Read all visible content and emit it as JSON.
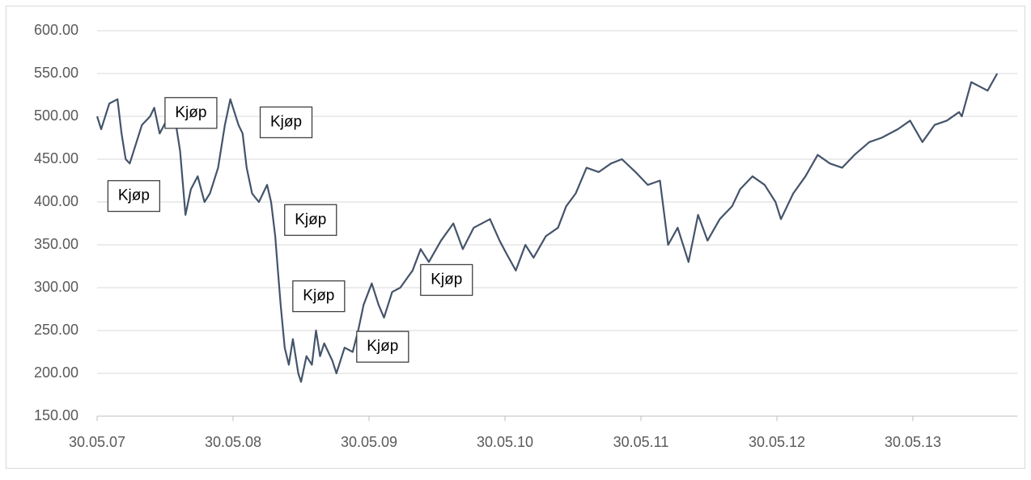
{
  "chart_data": {
    "type": "line",
    "x": [
      0,
      0.03,
      0.09,
      0.15,
      0.18,
      0.21,
      0.24,
      0.29,
      0.33,
      0.39,
      0.42,
      0.46,
      0.51,
      0.57,
      0.61,
      0.65,
      0.69,
      0.74,
      0.79,
      0.83,
      0.89,
      0.94,
      0.98,
      1.04,
      1.07,
      1.1,
      1.14,
      1.19,
      1.25,
      1.28,
      1.31,
      1.33,
      1.35,
      1.38,
      1.41,
      1.44,
      1.48,
      1.5,
      1.54,
      1.58,
      1.61,
      1.64,
      1.67,
      1.73,
      1.76,
      1.82,
      1.88,
      1.92,
      1.96,
      2.02,
      2.07,
      2.11,
      2.17,
      2.23,
      2.32,
      2.38,
      2.44,
      2.53,
      2.62,
      2.69,
      2.77,
      2.89,
      2.96,
      3.01,
      3.08,
      3.15,
      3.21,
      3.3,
      3.39,
      3.45,
      3.52,
      3.6,
      3.69,
      3.78,
      3.86,
      3.96,
      4.05,
      4.14,
      4.2,
      4.27,
      4.35,
      4.42,
      4.49,
      4.58,
      4.67,
      4.73,
      4.82,
      4.91,
      4.99,
      5.03,
      5.12,
      5.21,
      5.3,
      5.39,
      5.48,
      5.57,
      5.68,
      5.77,
      5.89,
      5.98,
      6.07,
      6.16,
      6.25,
      6.34,
      6.36,
      6.43,
      6.55,
      6.62
    ],
    "values": [
      500,
      485,
      515,
      520,
      480,
      450,
      445,
      470,
      490,
      500,
      510,
      480,
      495,
      500,
      460,
      385,
      415,
      430,
      400,
      410,
      440,
      490,
      520,
      490,
      480,
      440,
      410,
      400,
      420,
      400,
      360,
      320,
      280,
      230,
      210,
      240,
      200,
      190,
      220,
      210,
      250,
      220,
      235,
      215,
      200,
      230,
      225,
      250,
      280,
      305,
      280,
      265,
      295,
      300,
      320,
      345,
      330,
      355,
      375,
      345,
      370,
      380,
      355,
      340,
      320,
      350,
      335,
      360,
      370,
      395,
      410,
      440,
      435,
      445,
      450,
      435,
      420,
      425,
      350,
      370,
      330,
      385,
      355,
      380,
      395,
      415,
      430,
      420,
      400,
      380,
      410,
      430,
      455,
      445,
      440,
      455,
      470,
      475,
      485,
      495,
      470,
      490,
      495,
      505,
      500,
      540,
      530,
      550
    ],
    "color": "#44546a",
    "xlim": [
      0,
      6.77
    ],
    "ylim": [
      150,
      600
    ],
    "xticks": [
      {
        "value": 0,
        "label": "30.05.07"
      },
      {
        "value": 1,
        "label": "30.05.08"
      },
      {
        "value": 2,
        "label": "30.05.09"
      },
      {
        "value": 3,
        "label": "30.05.10"
      },
      {
        "value": 4,
        "label": "30.05.11"
      },
      {
        "value": 5,
        "label": "30.05.12"
      },
      {
        "value": 6,
        "label": "30.05.13"
      }
    ],
    "yticks": [
      {
        "value": 150,
        "label": "150.00"
      },
      {
        "value": 200,
        "label": "200.00"
      },
      {
        "value": 250,
        "label": "250.00"
      },
      {
        "value": 300,
        "label": "300.00"
      },
      {
        "value": 350,
        "label": "350.00"
      },
      {
        "value": 400,
        "label": "400.00"
      },
      {
        "value": 450,
        "label": "450.00"
      },
      {
        "value": 500,
        "label": "500.00"
      },
      {
        "value": 550,
        "label": "550.00"
      },
      {
        "value": 600,
        "label": "600.00"
      }
    ],
    "grid": true,
    "annotations": [
      {
        "text": "Kjøp",
        "x": 0.27,
        "y": 407
      },
      {
        "text": "Kjøp",
        "x": 0.69,
        "y": 504
      },
      {
        "text": "Kjøp",
        "x": 1.39,
        "y": 493
      },
      {
        "text": "Kjøp",
        "x": 1.57,
        "y": 379
      },
      {
        "text": "Kjøp",
        "x": 1.63,
        "y": 290
      },
      {
        "text": "Kjøp",
        "x": 2.57,
        "y": 309
      },
      {
        "text": "Kjøp",
        "x": 2.1,
        "y": 231
      }
    ]
  }
}
